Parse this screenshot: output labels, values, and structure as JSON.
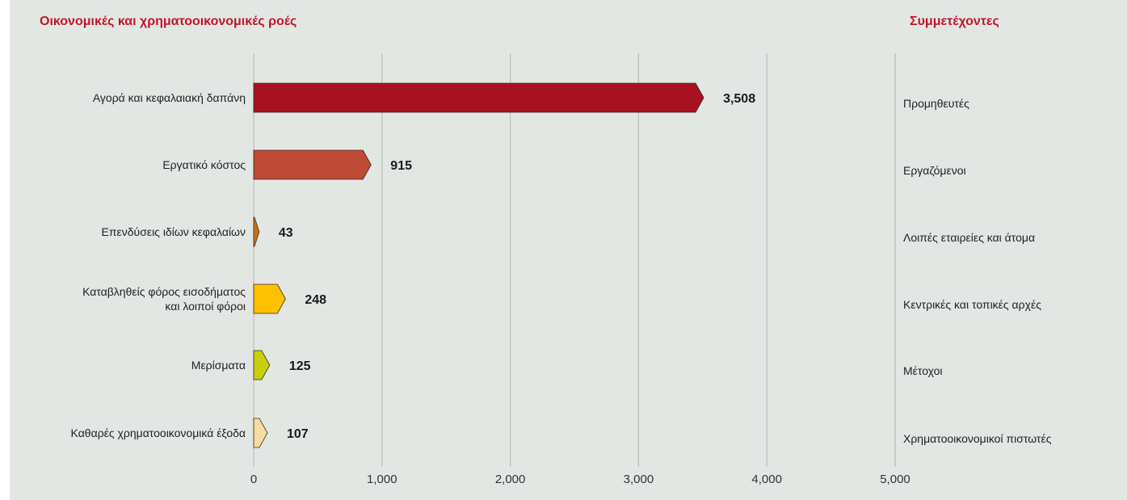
{
  "header": {
    "left_title": "Οικονομικές και χρηματοοικονομικές ροές",
    "right_title": "Συμμετέχοντες"
  },
  "chart_data": {
    "type": "bar",
    "orientation": "horizontal",
    "title": "Οικονομικές και χρηματοοικονομικές ροές",
    "categories": [
      [
        "Αγορά και κεφαλαιακή δαπάνη"
      ],
      [
        "Εργατικό κόστος"
      ],
      [
        "Επενδύσεις ιδίων κεφαλαίων"
      ],
      [
        "Καταβληθείς φόρος εισοδήματος",
        "και λοιποί φόροι"
      ],
      [
        "Μερίσματα"
      ],
      [
        "Καθαρές χρηματοοικονομικά έξοδα"
      ]
    ],
    "values": [
      3508,
      915,
      43,
      248,
      125,
      107
    ],
    "value_labels": [
      "3,508",
      "915",
      "43",
      "248",
      "125",
      "107"
    ],
    "bar_colors": [
      "#a8111f",
      "#bf4a35",
      "#cf6e14",
      "#ffc200",
      "#c9cf0c",
      "#f6dca0"
    ],
    "participants": [
      "Προμηθευτές",
      "Εργαζόμενοι",
      "Λοιπές εταιρείες και άτομα",
      "Κεντρικές και τοπικές αρχές",
      "Μέτοχοι",
      "Χρηματοοικονομικοί πιστωτές"
    ],
    "xlim": [
      0,
      5000
    ],
    "x_ticks": [
      0,
      1000,
      2000,
      3000,
      4000,
      5000
    ],
    "x_tick_labels": [
      "0",
      "1,000",
      "2,000",
      "3,000",
      "4,000",
      "5,000"
    ],
    "grid": true
  }
}
